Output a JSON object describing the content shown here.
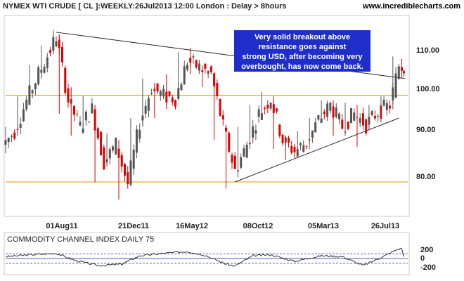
{
  "header": {
    "title": "NYMEX WTI CRUDE [ CL ]:WEEKLY:26Jul2013 12:00 London : Delay > 8hours",
    "site": "www.incrediblecharts.com"
  },
  "annotation": {
    "lines": [
      "Very solid breakout above",
      "resistance goes against",
      "strong USD, after becoming very",
      "overbought, has now come back."
    ],
    "color": "#1f2ec9"
  },
  "colors": {
    "up": "#555555",
    "down": "#e00000",
    "resistance": "#e59400",
    "trendline": "#222222",
    "cci_band": "#5555cc",
    "cci_line": "#333333"
  },
  "chart_data": [
    {
      "type": "candlestick",
      "title": "NYMEX WTI CRUDE [ CL ]:WEEKLY:26Jul2013 12:00 London : Delay > 8hours",
      "ylim": [
        72,
        117
      ],
      "y_ticks": [
        "110.00",
        "100.00",
        "90.00",
        "80.00"
      ],
      "x_ticks": [
        "01Aug11",
        "21Dec11",
        "16May12",
        "08Oct12",
        "05Mar13",
        "26Jul13"
      ],
      "grid": false,
      "horizontal_lines": [
        99.2,
        79.5
      ],
      "trendlines": [
        {
          "from": [
            "2011-05-02",
            113.5
          ],
          "to": [
            "2013-07-29",
            103
          ]
        },
        {
          "from": [
            "2012-06-25",
            79.5
          ],
          "to": [
            "2013-07-15",
            94
          ]
        }
      ],
      "series_weekly": [
        {
          "date": "2011-01-03",
          "open": 88.0,
          "high": 92.0,
          "low": 86.0,
          "close": 91.0
        },
        {
          "date": "2011-01-31",
          "open": 91.0,
          "high": 99.0,
          "low": 90.0,
          "close": 98.0
        },
        {
          "date": "2011-02-28",
          "open": 98.0,
          "high": 106.0,
          "low": 97.0,
          "close": 104.0
        },
        {
          "date": "2011-03-28",
          "open": 104.0,
          "high": 110.5,
          "low": 103.0,
          "close": 109.5
        },
        {
          "date": "2011-04-25",
          "open": 109.5,
          "high": 114.0,
          "low": 108.5,
          "close": 112.5
        },
        {
          "date": "2011-05-09",
          "open": 112.5,
          "high": 113.0,
          "low": 95.0,
          "close": 98.0
        },
        {
          "date": "2011-06-06",
          "open": 98.0,
          "high": 101.0,
          "low": 90.0,
          "close": 92.0
        },
        {
          "date": "2011-07-04",
          "open": 92.0,
          "high": 99.0,
          "low": 91.0,
          "close": 96.0
        },
        {
          "date": "2011-08-01",
          "open": 96.0,
          "high": 97.0,
          "low": 79.5,
          "close": 84.0
        },
        {
          "date": "2011-08-29",
          "open": 84.0,
          "high": 90.5,
          "low": 83.0,
          "close": 88.0
        },
        {
          "date": "2011-09-26",
          "open": 88.0,
          "high": 89.0,
          "low": 75.5,
          "close": 79.0
        },
        {
          "date": "2011-10-24",
          "open": 79.0,
          "high": 94.0,
          "low": 78.5,
          "close": 93.0
        },
        {
          "date": "2011-11-21",
          "open": 93.0,
          "high": 103.0,
          "low": 92.0,
          "close": 101.0
        },
        {
          "date": "2011-12-19",
          "open": 101.0,
          "high": 102.0,
          "low": 94.0,
          "close": 99.0
        },
        {
          "date": "2012-01-16",
          "open": 99.0,
          "high": 104.0,
          "low": 96.0,
          "close": 98.5
        },
        {
          "date": "2012-02-13",
          "open": 98.5,
          "high": 109.0,
          "low": 98.0,
          "close": 107.0
        },
        {
          "date": "2012-03-12",
          "open": 107.0,
          "high": 110.0,
          "low": 104.0,
          "close": 105.5
        },
        {
          "date": "2012-04-09",
          "open": 105.5,
          "high": 106.0,
          "low": 101.0,
          "close": 104.0
        },
        {
          "date": "2012-05-07",
          "open": 104.0,
          "high": 104.5,
          "low": 89.0,
          "close": 92.0
        },
        {
          "date": "2012-06-04",
          "open": 92.0,
          "high": 92.5,
          "low": 78.0,
          "close": 82.0
        },
        {
          "date": "2012-07-02",
          "open": 82.0,
          "high": 92.0,
          "low": 80.5,
          "close": 88.0
        },
        {
          "date": "2012-07-30",
          "open": 88.0,
          "high": 97.0,
          "low": 87.0,
          "close": 95.0
        },
        {
          "date": "2012-08-27",
          "open": 95.0,
          "high": 100.0,
          "low": 94.0,
          "close": 98.5
        },
        {
          "date": "2012-09-24",
          "open": 98.5,
          "high": 99.0,
          "low": 87.0,
          "close": 89.0
        },
        {
          "date": "2012-10-22",
          "open": 89.0,
          "high": 90.0,
          "low": 84.5,
          "close": 86.5
        },
        {
          "date": "2012-11-19",
          "open": 86.5,
          "high": 91.0,
          "low": 85.0,
          "close": 88.5
        },
        {
          "date": "2012-12-17",
          "open": 88.5,
          "high": 94.0,
          "low": 87.0,
          "close": 93.5
        },
        {
          "date": "2013-01-14",
          "open": 93.5,
          "high": 98.0,
          "low": 93.0,
          "close": 97.0
        },
        {
          "date": "2013-02-11",
          "open": 97.0,
          "high": 98.0,
          "low": 90.0,
          "close": 92.0
        },
        {
          "date": "2013-03-11",
          "open": 92.0,
          "high": 97.5,
          "low": 90.0,
          "close": 95.0
        },
        {
          "date": "2013-04-08",
          "open": 95.0,
          "high": 97.0,
          "low": 87.5,
          "close": 92.5
        },
        {
          "date": "2013-05-06",
          "open": 92.5,
          "high": 97.0,
          "low": 91.5,
          "close": 95.5
        },
        {
          "date": "2013-06-03",
          "open": 95.5,
          "high": 99.0,
          "low": 93.0,
          "close": 97.0
        },
        {
          "date": "2013-07-01",
          "open": 97.0,
          "high": 108.0,
          "low": 96.0,
          "close": 106.0
        },
        {
          "date": "2013-07-22",
          "open": 106.0,
          "high": 107.5,
          "low": 103.0,
          "close": 105.5
        }
      ]
    },
    {
      "type": "line",
      "title": "COMMODITY CHANNEL INDEX DAILY 75",
      "ylim": [
        -300,
        300
      ],
      "y_ticks": [
        200,
        0,
        -200
      ],
      "bands": [
        100,
        0,
        -100
      ],
      "x": [
        "2011-01-03",
        "2011-03-01",
        "2011-05-02",
        "2011-06-15",
        "2011-08-08",
        "2011-10-03",
        "2011-11-14",
        "2012-01-09",
        "2012-03-05",
        "2012-04-16",
        "2012-06-04",
        "2012-06-25",
        "2012-08-06",
        "2012-09-17",
        "2012-11-12",
        "2013-01-14",
        "2013-03-04",
        "2013-04-22",
        "2013-06-03",
        "2013-07-08",
        "2013-07-22",
        "2013-07-26"
      ],
      "values": [
        40,
        80,
        110,
        -40,
        -150,
        -120,
        60,
        110,
        150,
        70,
        -120,
        -160,
        60,
        80,
        -60,
        60,
        40,
        -150,
        20,
        180,
        220,
        40
      ]
    }
  ]
}
